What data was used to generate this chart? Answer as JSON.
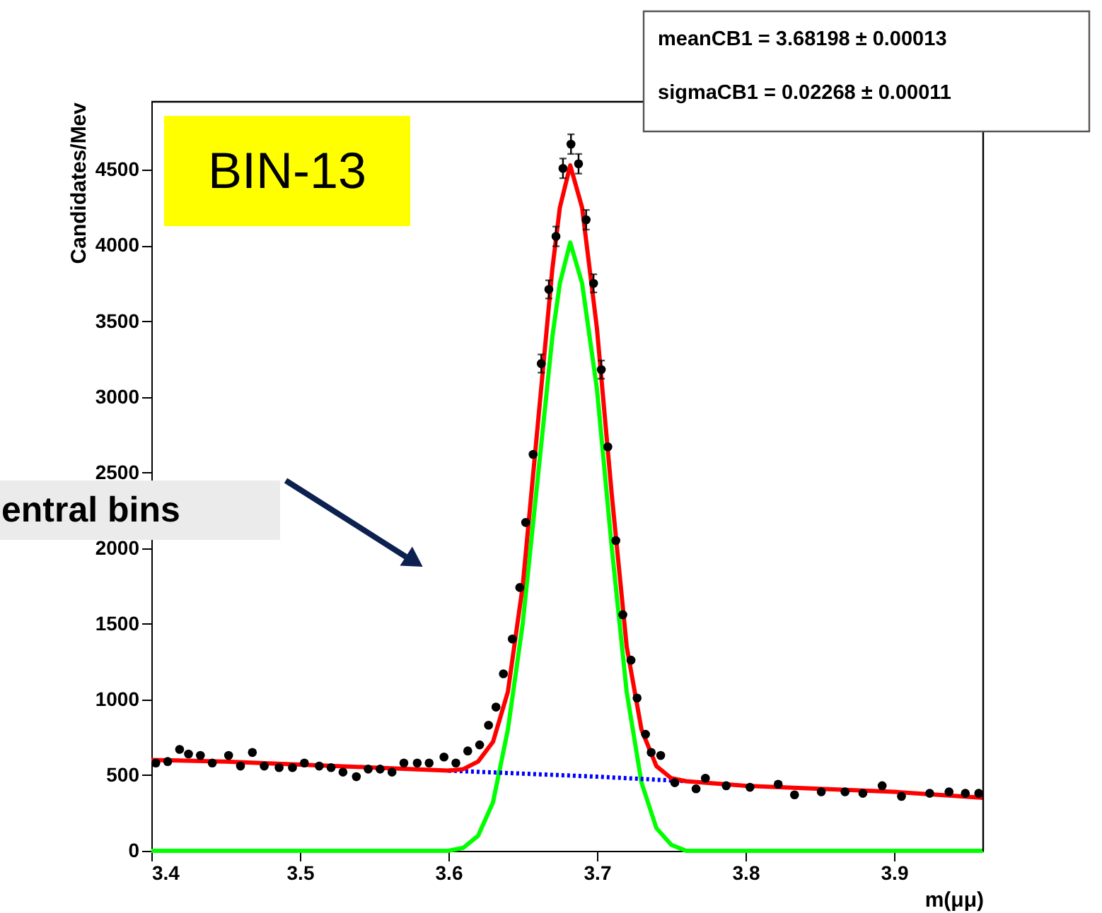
{
  "chart_data": {
    "type": "scatter",
    "xlabel": "m(μμ)",
    "ylabel": "Candidates/Mev",
    "xlim": [
      3.4,
      3.96
    ],
    "ylim": [
      0,
      4950
    ],
    "xticks": [
      3.4,
      3.5,
      3.6,
      3.7,
      3.8,
      3.9
    ],
    "yticks": [
      0,
      500,
      1000,
      1500,
      2000,
      2500,
      3000,
      3500,
      4000,
      4500
    ],
    "grid": false,
    "annotations": [
      "BIN-13",
      "entral bins",
      "meanCB1 =  3.68198 ± 0.00013",
      "sigmaCB1 =  0.02268 ± 0.00011"
    ],
    "series": [
      {
        "type": "scatter",
        "color": "#000000",
        "marker": "circle",
        "x": [
          3.403,
          3.411,
          3.419,
          3.425,
          3.433,
          3.441,
          3.452,
          3.46,
          3.468,
          3.476,
          3.486,
          3.495,
          3.503,
          3.513,
          3.521,
          3.529,
          3.538,
          3.546,
          3.554,
          3.562,
          3.57,
          3.579,
          3.587,
          3.597,
          3.605,
          3.613,
          3.621,
          3.627,
          3.632,
          3.637,
          3.643,
          3.648,
          3.652,
          3.657,
          3.6625,
          3.6676,
          3.6724,
          3.6771,
          3.6825,
          3.6876,
          3.6927,
          3.6977,
          3.7029,
          3.7073,
          3.7127,
          3.7174,
          3.7229,
          3.727,
          3.7327,
          3.7365,
          3.7429,
          3.7524,
          3.7667,
          3.773,
          3.787,
          3.803,
          3.822,
          3.833,
          3.851,
          3.867,
          3.879,
          3.892,
          3.905,
          3.924,
          3.937,
          3.948,
          3.957
        ],
        "values": [
          580,
          590,
          670,
          640,
          630,
          580,
          630,
          560,
          650,
          560,
          550,
          550,
          580,
          560,
          550,
          520,
          490,
          540,
          540,
          520,
          580,
          580,
          580,
          620,
          580,
          660,
          700,
          830,
          950,
          1170,
          1400,
          1740,
          2170,
          2620,
          3220,
          3710,
          4060,
          4510,
          4670,
          4540,
          4170,
          3750,
          3180,
          2670,
          2050,
          1560,
          1260,
          1010,
          770,
          650,
          630,
          450,
          410,
          480,
          430,
          420,
          440,
          370,
          390,
          390,
          380,
          430,
          360,
          380,
          390,
          380,
          380
        ],
        "errors": [
          null,
          null,
          null,
          null,
          null,
          null,
          null,
          null,
          null,
          null,
          null,
          null,
          null,
          null,
          null,
          null,
          null,
          null,
          null,
          null,
          null,
          null,
          null,
          null,
          null,
          null,
          null,
          null,
          null,
          null,
          null,
          null,
          null,
          null,
          60,
          60,
          65,
          65,
          65,
          65,
          65,
          60,
          60,
          null,
          null,
          null,
          null,
          null,
          null,
          null,
          null,
          null,
          null,
          null,
          null,
          null,
          null,
          null,
          null,
          null,
          null,
          null,
          null,
          null,
          null,
          null,
          null
        ]
      },
      {
        "type": "line",
        "color": "#00ff00",
        "line_style": "solid",
        "x": [
          3.4,
          3.6,
          3.61,
          3.62,
          3.63,
          3.64,
          3.65,
          3.66,
          3.67,
          3.675,
          3.682,
          3.69,
          3.7,
          3.71,
          3.72,
          3.73,
          3.74,
          3.75,
          3.76,
          3.96
        ],
        "values": [
          0,
          0,
          20,
          100,
          320,
          800,
          1500,
          2450,
          3400,
          3750,
          4020,
          3750,
          3050,
          2000,
          1050,
          450,
          150,
          40,
          0,
          0
        ]
      },
      {
        "type": "line",
        "color": "#0000ff",
        "line_style": "dotted",
        "x": [
          3.6,
          3.65,
          3.7,
          3.76
        ],
        "values": [
          530,
          510,
          490,
          460
        ]
      },
      {
        "type": "line",
        "color": "#ff0000",
        "line_style": "solid",
        "x": [
          3.4,
          3.45,
          3.5,
          3.55,
          3.6,
          3.61,
          3.62,
          3.63,
          3.64,
          3.65,
          3.66,
          3.67,
          3.675,
          3.682,
          3.69,
          3.7,
          3.71,
          3.72,
          3.73,
          3.74,
          3.75,
          3.76,
          3.8,
          3.85,
          3.9,
          3.96
        ],
        "values": [
          600,
          590,
          570,
          550,
          530,
          540,
          590,
          720,
          1050,
          1750,
          2800,
          3850,
          4250,
          4530,
          4250,
          3450,
          2350,
          1350,
          800,
          560,
          480,
          460,
          430,
          410,
          390,
          350
        ]
      }
    ]
  }
}
